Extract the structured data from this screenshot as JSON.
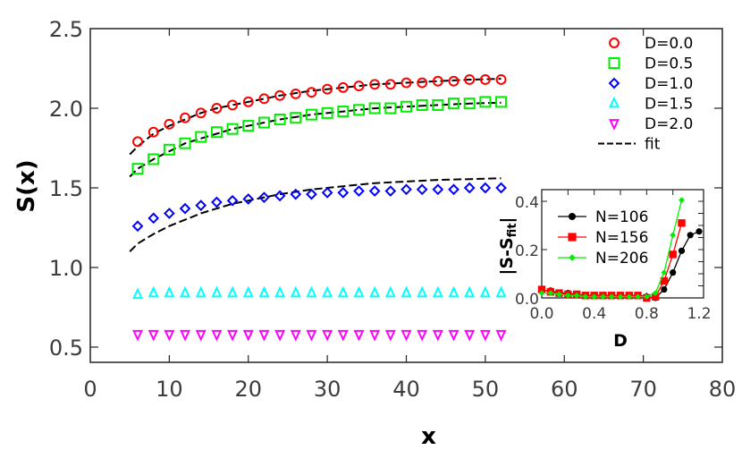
{
  "chart_data": [
    {
      "type": "scatter",
      "title": "",
      "xlabel": "x",
      "ylabel": "S(x)",
      "xlim": [
        0,
        80
      ],
      "ylim": [
        0.4,
        2.5
      ],
      "xticks": [
        "0",
        "10",
        "20",
        "30",
        "40",
        "50",
        "60",
        "70",
        "80"
      ],
      "yticks": [
        "0.5",
        "1.0",
        "1.5",
        "2.0",
        "2.5"
      ],
      "grid": false,
      "legend_position": "upper right",
      "x": [
        6,
        8,
        10,
        12,
        14,
        16,
        18,
        20,
        22,
        24,
        26,
        28,
        30,
        32,
        34,
        36,
        38,
        40,
        42,
        44,
        46,
        48,
        50,
        52
      ],
      "series": [
        {
          "name": "D=0.0",
          "marker": "circle",
          "color": "#ff0000",
          "values": [
            1.79,
            1.85,
            1.9,
            1.94,
            1.97,
            2.0,
            2.02,
            2.04,
            2.06,
            2.08,
            2.09,
            2.1,
            2.12,
            2.13,
            2.14,
            2.15,
            2.15,
            2.16,
            2.16,
            2.17,
            2.17,
            2.18,
            2.18,
            2.18
          ]
        },
        {
          "name": "D=0.5",
          "marker": "square",
          "color": "#00ee00",
          "values": [
            1.62,
            1.68,
            1.74,
            1.78,
            1.82,
            1.85,
            1.87,
            1.89,
            1.91,
            1.93,
            1.94,
            1.96,
            1.97,
            1.98,
            1.99,
            2.0,
            2.0,
            2.01,
            2.02,
            2.02,
            2.03,
            2.03,
            2.04,
            2.04
          ]
        },
        {
          "name": "D=1.0",
          "marker": "diamond",
          "color": "#0000ff",
          "values": [
            1.26,
            1.31,
            1.34,
            1.37,
            1.39,
            1.41,
            1.42,
            1.43,
            1.44,
            1.45,
            1.46,
            1.46,
            1.47,
            1.47,
            1.48,
            1.48,
            1.48,
            1.49,
            1.49,
            1.49,
            1.49,
            1.5,
            1.5,
            1.5
          ]
        },
        {
          "name": "D=1.5",
          "marker": "triangle-up",
          "color": "#00ffff",
          "values": [
            0.83,
            0.84,
            0.84,
            0.84,
            0.84,
            0.84,
            0.84,
            0.84,
            0.84,
            0.84,
            0.84,
            0.84,
            0.84,
            0.84,
            0.84,
            0.84,
            0.84,
            0.84,
            0.84,
            0.84,
            0.84,
            0.84,
            0.84,
            0.84
          ]
        },
        {
          "name": "D=2.0",
          "marker": "triangle-down",
          "color": "#ff00ff",
          "values": [
            0.58,
            0.58,
            0.58,
            0.58,
            0.58,
            0.58,
            0.58,
            0.58,
            0.58,
            0.58,
            0.58,
            0.58,
            0.58,
            0.58,
            0.58,
            0.58,
            0.58,
            0.58,
            0.58,
            0.58,
            0.58,
            0.58,
            0.58,
            0.58
          ]
        }
      ],
      "fit_lines": [
        {
          "name": "fit",
          "style": "dashed",
          "color": "#000000",
          "x": [
            5,
            6,
            8,
            10,
            12,
            14,
            16,
            18,
            20,
            24,
            28,
            32,
            36,
            40,
            44,
            48,
            52
          ],
          "values": [
            1.71,
            1.76,
            1.84,
            1.89,
            1.93,
            1.97,
            2.0,
            2.02,
            2.04,
            2.08,
            2.11,
            2.13,
            2.15,
            2.16,
            2.17,
            2.18,
            2.185
          ]
        },
        {
          "name": "fit",
          "style": "dashed",
          "color": "#000000",
          "x": [
            5,
            6,
            8,
            10,
            12,
            14,
            16,
            18,
            20,
            24,
            28,
            32,
            36,
            40,
            44,
            48,
            52
          ],
          "values": [
            1.57,
            1.62,
            1.68,
            1.73,
            1.78,
            1.81,
            1.84,
            1.87,
            1.89,
            1.93,
            1.96,
            1.98,
            2.0,
            2.01,
            2.02,
            2.03,
            2.035
          ]
        },
        {
          "name": "fit",
          "style": "dashed",
          "color": "#000000",
          "x": [
            5,
            6,
            8,
            10,
            12,
            14,
            16,
            18,
            20,
            24,
            28,
            32,
            36,
            40,
            44,
            48,
            52
          ],
          "values": [
            1.1,
            1.15,
            1.21,
            1.26,
            1.3,
            1.34,
            1.37,
            1.4,
            1.42,
            1.46,
            1.49,
            1.51,
            1.53,
            1.54,
            1.55,
            1.555,
            1.56
          ]
        }
      ],
      "legend": [
        "D=0.0",
        "D=0.5",
        "D=1.0",
        "D=1.5",
        "D=2.0",
        "fit"
      ]
    },
    {
      "type": "line",
      "title": "",
      "xlabel": "D",
      "ylabel": "|S-S_fit|",
      "xlim": [
        0,
        1.2
      ],
      "ylim": [
        0,
        0.45
      ],
      "xticks": [
        "0.0",
        "0.4",
        "0.8",
        "1.2"
      ],
      "yticks": [
        "0.0",
        "0.2",
        "0.4"
      ],
      "grid": false,
      "legend_position": "upper left",
      "series": [
        {
          "name": "N=106",
          "marker": "circle",
          "color": "#000000",
          "x": [
            0.0,
            0.067,
            0.133,
            0.2,
            0.267,
            0.333,
            0.4,
            0.467,
            0.533,
            0.6,
            0.667,
            0.733,
            0.8,
            0.867,
            0.933,
            1.0,
            1.067,
            1.133,
            1.2
          ],
          "values": [
            0.03,
            0.03,
            0.02,
            0.02,
            0.015,
            0.01,
            0.01,
            0.01,
            0.01,
            0.01,
            0.01,
            0.01,
            0.005,
            0.0,
            0.035,
            0.105,
            0.195,
            0.26,
            0.275
          ]
        },
        {
          "name": "N=156",
          "marker": "square",
          "color": "#ff0000",
          "x": [
            0.0,
            0.067,
            0.133,
            0.2,
            0.267,
            0.333,
            0.4,
            0.467,
            0.533,
            0.6,
            0.667,
            0.733,
            0.8,
            0.867,
            0.933,
            1.0,
            1.067
          ],
          "values": [
            0.035,
            0.025,
            0.02,
            0.015,
            0.015,
            0.01,
            0.01,
            0.01,
            0.01,
            0.01,
            0.01,
            0.01,
            0.0,
            0.005,
            0.07,
            0.18,
            0.31
          ]
        },
        {
          "name": "N=206",
          "marker": "diamond-small",
          "color": "#00ee00",
          "x": [
            0.0,
            0.067,
            0.133,
            0.2,
            0.267,
            0.333,
            0.4,
            0.467,
            0.533,
            0.6,
            0.667,
            0.733,
            0.8,
            0.867,
            0.933,
            1.0,
            1.067
          ],
          "values": [
            0.02,
            0.02,
            0.015,
            0.01,
            0.01,
            0.005,
            0.005,
            0.005,
            0.005,
            0.005,
            0.005,
            0.005,
            0.005,
            0.02,
            0.105,
            0.26,
            0.405
          ]
        }
      ],
      "legend": [
        "N=106",
        "N=156",
        "N=206"
      ]
    }
  ]
}
